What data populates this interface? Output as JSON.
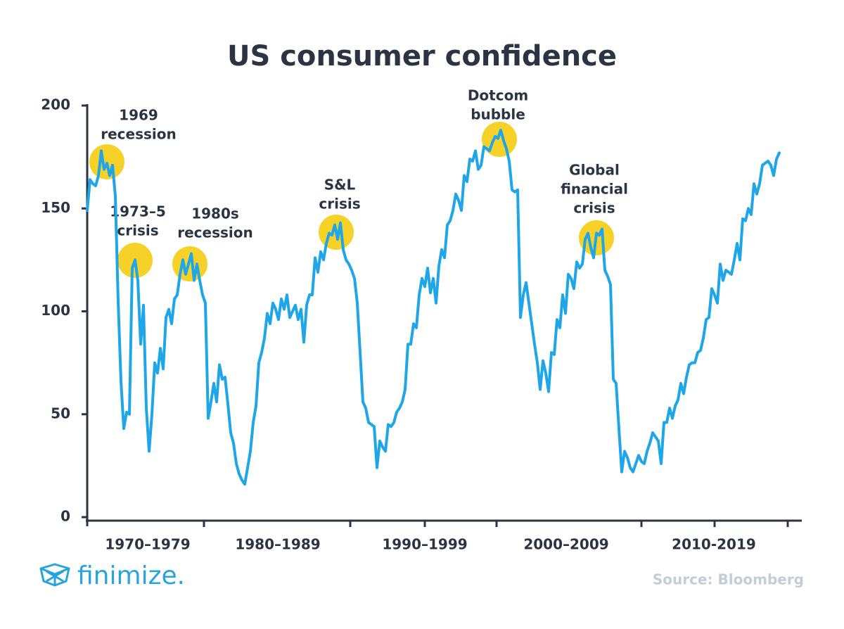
{
  "chart_data": {
    "type": "line",
    "title": "US consumer confidence",
    "color": "#1fa6e8",
    "ylim": [
      0,
      200
    ],
    "yticks": [
      0,
      50,
      100,
      150,
      200
    ],
    "xlim": [
      1967,
      2017.8
    ],
    "xticks": [
      1975.3,
      1985.7,
      1991,
      1996.1,
      2006.4,
      2011.6,
      2016.8
    ],
    "period_labels": [
      "1970–1979",
      "1980–1989",
      "1990–1999",
      "2000–2009",
      "2010-2019"
    ],
    "annotations": [
      {
        "lines": [
          "1969",
          "recession"
        ]
      },
      {
        "lines": [
          "1973–5",
          "crisis"
        ]
      },
      {
        "lines": [
          "1980s",
          "recession"
        ]
      },
      {
        "lines": [
          "S&L",
          "crisis"
        ]
      },
      {
        "lines": [
          "Dotcom",
          "bubble"
        ]
      },
      {
        "lines": [
          "Global",
          "financial",
          "crisis"
        ]
      }
    ],
    "source": "Source: Bloomberg",
    "brand": "finimize.",
    "x": [
      1967,
      1967.2,
      1967.4,
      1967.6,
      1967.8,
      1968,
      1968.2,
      1968.4,
      1968.6,
      1968.8,
      1969,
      1969.2,
      1969.4,
      1969.6,
      1969.8,
      1970,
      1970.2,
      1970.4,
      1970.6,
      1970.8,
      1971,
      1971.2,
      1971.4,
      1971.6,
      1971.8,
      1972,
      1972.2,
      1972.4,
      1972.6,
      1972.8,
      1973,
      1973.2,
      1973.4,
      1973.6,
      1973.8,
      1974,
      1974.2,
      1974.4,
      1974.6,
      1974.8,
      1975,
      1975.2,
      1975.4,
      1975.6,
      1975.8,
      1976,
      1976.2,
      1976.4,
      1976.6,
      1976.8,
      1977,
      1977.2,
      1977.4,
      1977.6,
      1977.8,
      1978,
      1978.2,
      1978.4,
      1978.6,
      1978.8,
      1979,
      1979.2,
      1979.4,
      1979.6,
      1979.8,
      1980,
      1980.2,
      1980.4,
      1980.6,
      1980.8,
      1981,
      1981.2,
      1981.4,
      1981.6,
      1981.8,
      1982,
      1982.2,
      1982.4,
      1982.6,
      1982.8,
      1983,
      1983.2,
      1983.4,
      1983.6,
      1983.8,
      1984,
      1984.2,
      1984.4,
      1984.6,
      1984.8,
      1985,
      1985.2,
      1985.4,
      1985.6,
      1985.8,
      1986,
      1986.2,
      1986.4,
      1986.6,
      1986.8,
      1987,
      1987.2,
      1987.4,
      1987.6,
      1987.8,
      1988,
      1988.2,
      1988.4,
      1988.6,
      1988.8,
      1989,
      1989.2,
      1989.4,
      1989.6,
      1989.8,
      1990,
      1990.2,
      1990.4,
      1990.6,
      1990.8,
      1991,
      1991.2,
      1991.4,
      1991.6,
      1991.8,
      1992,
      1992.2,
      1992.4,
      1992.6,
      1992.8,
      1993,
      1993.2,
      1993.4,
      1993.6,
      1993.8,
      1994,
      1994.2,
      1994.4,
      1994.6,
      1994.8,
      1995,
      1995.2,
      1995.4,
      1995.6,
      1995.8,
      1996,
      1996.2,
      1996.4,
      1996.6,
      1996.8,
      1997,
      1997.2,
      1997.4,
      1997.6,
      1997.8,
      1998,
      1998.2,
      1998.4,
      1998.6,
      1998.8,
      1999,
      1999.2,
      1999.4,
      1999.6,
      1999.8,
      2000,
      2000.2,
      2000.4,
      2000.6,
      2000.8,
      2001,
      2001.2,
      2001.4,
      2001.6,
      2001.8,
      2002,
      2002.2,
      2002.4,
      2002.6,
      2002.8,
      2003,
      2003.2,
      2003.4,
      2003.6,
      2003.8,
      2004,
      2004.2,
      2004.4,
      2004.6,
      2004.8,
      2005,
      2005.2,
      2005.4,
      2005.6,
      2005.8,
      2006,
      2006.2,
      2006.4,
      2006.6,
      2006.8,
      2007,
      2007.2,
      2007.4,
      2007.6,
      2007.8,
      2008,
      2008.2,
      2008.4,
      2008.6,
      2008.8,
      2009,
      2009.2,
      2009.4,
      2009.6,
      2009.8,
      2010,
      2010.2,
      2010.4,
      2010.6,
      2010.8,
      2011,
      2011.2,
      2011.4,
      2011.6,
      2011.8,
      2012,
      2012.2,
      2012.4,
      2012.6,
      2012.8,
      2013,
      2013.2,
      2013.4,
      2013.6,
      2013.8,
      2014,
      2014.2,
      2014.4,
      2014.6,
      2014.8,
      2015,
      2015.2,
      2015.4,
      2015.6,
      2015.8,
      2016,
      2016.2
    ],
    "values": [
      149,
      164,
      162,
      161,
      166,
      178,
      169,
      172,
      166,
      171,
      156,
      105,
      66,
      43,
      51,
      50,
      121,
      125,
      115,
      84,
      103,
      53,
      32,
      50,
      75,
      70,
      82,
      72,
      97,
      101,
      94,
      106,
      108,
      118,
      125,
      118,
      123,
      128,
      115,
      123,
      115,
      108,
      104,
      48,
      56,
      65,
      56,
      74,
      67,
      68,
      55,
      41,
      36,
      26,
      21,
      18,
      16,
      24,
      32,
      46,
      54,
      75,
      80,
      87,
      99,
      94,
      104,
      101,
      96,
      106,
      101,
      108,
      97,
      100,
      103,
      96,
      101,
      85,
      103,
      108,
      108,
      126,
      119,
      129,
      125,
      133,
      138,
      137,
      142,
      135,
      143,
      130,
      125,
      123,
      120,
      116,
      104,
      80,
      56,
      53,
      46,
      45,
      44,
      24,
      37,
      34,
      32,
      45,
      44,
      46,
      51,
      53,
      56,
      62,
      84,
      84,
      94,
      92,
      108,
      116,
      112,
      121,
      109,
      116,
      104,
      122,
      130,
      126,
      142,
      144,
      149,
      157,
      154,
      149,
      166,
      163,
      174,
      173,
      178,
      169,
      171,
      180,
      179,
      178,
      182,
      185,
      184,
      188,
      183,
      179,
      173,
      159,
      158,
      159,
      97,
      108,
      114,
      104,
      94,
      84,
      75,
      62,
      76,
      70,
      61,
      80,
      79,
      96,
      92,
      108,
      99,
      118,
      116,
      111,
      124,
      121,
      123,
      135,
      138,
      131,
      126,
      138,
      137,
      140,
      120,
      117,
      113,
      67,
      65,
      43,
      22,
      32,
      29,
      24,
      22,
      26,
      30,
      27,
      26,
      32,
      36,
      41,
      39,
      37,
      26,
      46,
      46,
      53,
      48,
      54,
      57,
      65,
      60,
      68,
      74,
      75,
      75,
      80,
      81,
      87,
      96,
      97,
      111,
      108,
      104,
      123,
      115,
      120,
      119,
      118,
      125,
      133,
      125,
      145,
      144,
      150,
      147,
      162,
      157,
      162,
      171,
      172,
      173,
      171,
      166,
      174,
      177
    ]
  }
}
